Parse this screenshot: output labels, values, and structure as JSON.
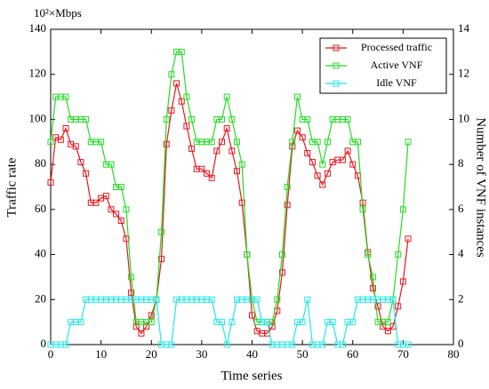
{
  "chart_data": {
    "type": "line",
    "annotation": "10²×Mbps",
    "xlabel": "Time series",
    "ylabel": "Traffic rate",
    "y2label": "Number of VNF instances",
    "x": [
      0,
      1,
      2,
      3,
      4,
      5,
      6,
      7,
      8,
      9,
      10,
      11,
      12,
      13,
      14,
      15,
      16,
      17,
      18,
      19,
      20,
      21,
      22,
      23,
      24,
      25,
      26,
      27,
      28,
      29,
      30,
      31,
      32,
      33,
      34,
      35,
      36,
      37,
      38,
      39,
      40,
      41,
      42,
      43,
      44,
      45,
      46,
      47,
      48,
      49,
      50,
      51,
      52,
      53,
      54,
      55,
      56,
      57,
      58,
      59,
      60,
      61,
      62,
      63,
      64,
      65,
      66,
      67,
      68,
      69,
      70,
      71
    ],
    "series": [
      {
        "name": "Processed traffic",
        "color": "#e8161e",
        "axis": "y",
        "values": [
          72,
          92,
          91,
          96,
          89,
          88,
          81,
          76,
          63,
          63,
          65,
          66,
          60,
          58,
          55,
          47,
          23,
          8,
          5,
          8,
          13,
          20,
          38,
          89,
          104,
          116,
          108,
          97,
          87,
          78,
          78,
          76,
          74,
          86,
          90,
          96,
          86,
          77,
          63,
          40,
          13,
          6,
          5,
          5,
          8,
          15,
          32,
          62,
          88,
          95,
          92,
          85,
          81,
          75,
          71,
          76,
          81,
          82,
          82,
          86,
          80,
          75,
          63,
          41,
          25,
          17,
          8,
          6,
          8,
          17,
          28,
          47
        ]
      },
      {
        "name": "Active VNF",
        "color": "#22dd22",
        "axis": "y2",
        "values": [
          9,
          11,
          11,
          11,
          10,
          10,
          10,
          10,
          9,
          9,
          9,
          8,
          8,
          7,
          7,
          6,
          3,
          1,
          1,
          1,
          1,
          2,
          5,
          10,
          12,
          13,
          13,
          11,
          10,
          9,
          9,
          9,
          9,
          10,
          10,
          11,
          10,
          9,
          8,
          4,
          2,
          1,
          1,
          1,
          1,
          2,
          4,
          7,
          9,
          11,
          10,
          10,
          9,
          9,
          8,
          9,
          10,
          10,
          10,
          10,
          9,
          9,
          6,
          4,
          3,
          1,
          1,
          1,
          2,
          4,
          6,
          9
        ]
      },
      {
        "name": "Idle VNF",
        "color": "#22e8e8",
        "axis": "y2",
        "values": [
          0,
          0,
          0,
          0,
          1,
          1,
          1,
          2,
          2,
          2,
          2,
          2,
          2,
          2,
          2,
          2,
          2,
          2,
          2,
          2,
          2,
          2,
          0,
          0,
          0,
          2,
          2,
          2,
          2,
          2,
          2,
          2,
          2,
          1,
          1,
          0,
          1,
          2,
          2,
          2,
          2,
          2,
          1,
          1,
          0,
          0,
          0,
          0,
          0,
          1,
          1,
          2,
          0,
          0,
          0,
          1,
          1,
          0,
          0,
          1,
          1,
          2,
          2,
          2,
          2,
          2,
          2,
          2,
          2,
          0,
          0,
          0
        ]
      }
    ],
    "xlim": [
      0,
      80
    ],
    "xticks": [
      0,
      10,
      20,
      30,
      40,
      50,
      60,
      70,
      80
    ],
    "ylim": [
      0,
      140
    ],
    "yticks": [
      0,
      20,
      40,
      60,
      80,
      100,
      120,
      140
    ],
    "y2lim": [
      0,
      14
    ],
    "y2ticks": [
      0,
      2,
      4,
      6,
      8,
      10,
      12,
      14
    ],
    "legend": "upper right"
  }
}
